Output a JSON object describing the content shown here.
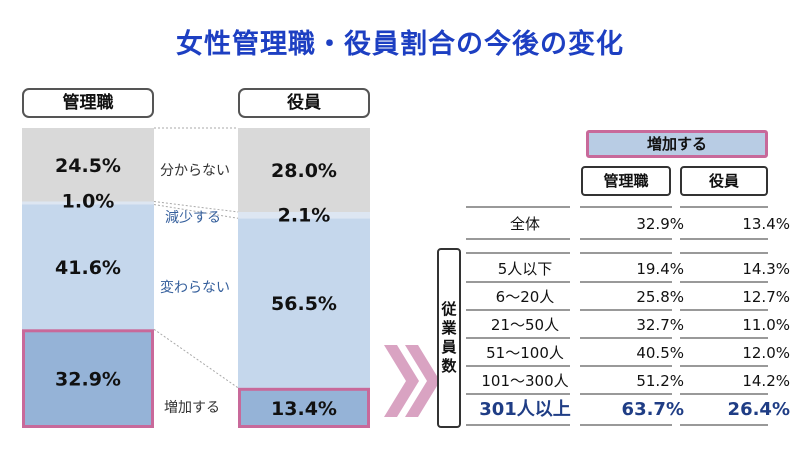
{
  "title": "女性管理職・役員割合の今後の変化",
  "chart_data": {
    "type": "bar",
    "stacked": true,
    "categories": [
      "管理職",
      "役員"
    ],
    "series": [
      {
        "name": "増加する",
        "values": [
          32.9,
          13.4
        ],
        "labels": [
          "32.9%",
          "13.4%"
        ]
      },
      {
        "name": "変わらない",
        "values": [
          41.6,
          56.5
        ],
        "labels": [
          "41.6%",
          "56.5%"
        ]
      },
      {
        "name": "減少する",
        "values": [
          1.0,
          2.1
        ],
        "labels": [
          "1.0%",
          "2.1%"
        ]
      },
      {
        "name": "分からない",
        "values": [
          24.5,
          28.0
        ],
        "labels": [
          "24.5%",
          "28.0%"
        ]
      }
    ],
    "ylim": [
      0,
      100
    ],
    "legend_placement": "between bars",
    "colors": {
      "増加する": "#95b3d7",
      "変わらない": "#c5d7ec",
      "減少する": "#dde6f2",
      "分からない": "#d9d9d9",
      "highlight": "#c8699a"
    }
  },
  "table": {
    "header": "増加する",
    "col_headers": [
      "管理職",
      "役員"
    ],
    "side_label": "従業員数",
    "rows": [
      {
        "label": "全体",
        "v1": "32.9%",
        "v2": "13.4%"
      },
      {
        "label": "5人以下",
        "v1": "19.4%",
        "v2": "14.3%"
      },
      {
        "label": "6～20人",
        "v1": "25.8%",
        "v2": "12.7%"
      },
      {
        "label": "21～50人",
        "v1": "32.7%",
        "v2": "11.0%"
      },
      {
        "label": "51～100人",
        "v1": "40.5%",
        "v2": "12.0%"
      },
      {
        "label": "101～300人",
        "v1": "51.2%",
        "v2": "14.2%"
      },
      {
        "label": "301人以上",
        "v1": "63.7%",
        "v2": "26.4%"
      }
    ]
  }
}
